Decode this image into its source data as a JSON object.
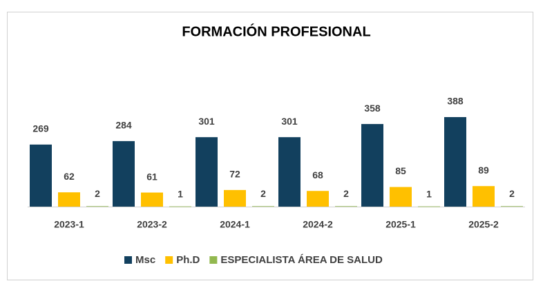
{
  "chart_data": {
    "type": "bar",
    "title": "FORMACIÓN PROFESIONAL",
    "categories": [
      "2023-1",
      "2023-2",
      "2024-1",
      "2024-2",
      "2025-1",
      "2025-2"
    ],
    "series": [
      {
        "name": "Msc",
        "color": "#12405e",
        "values": [
          269,
          284,
          301,
          301,
          358,
          388
        ]
      },
      {
        "name": "Ph.D",
        "color": "#ffc000",
        "values": [
          62,
          61,
          72,
          68,
          85,
          89
        ]
      },
      {
        "name": "ESPECIALISTA ÁREA DE SALUD",
        "color": "#92b84f",
        "values": [
          2,
          1,
          2,
          2,
          1,
          2
        ]
      }
    ],
    "ylim": [
      0,
      400
    ],
    "legend": "bottom"
  }
}
